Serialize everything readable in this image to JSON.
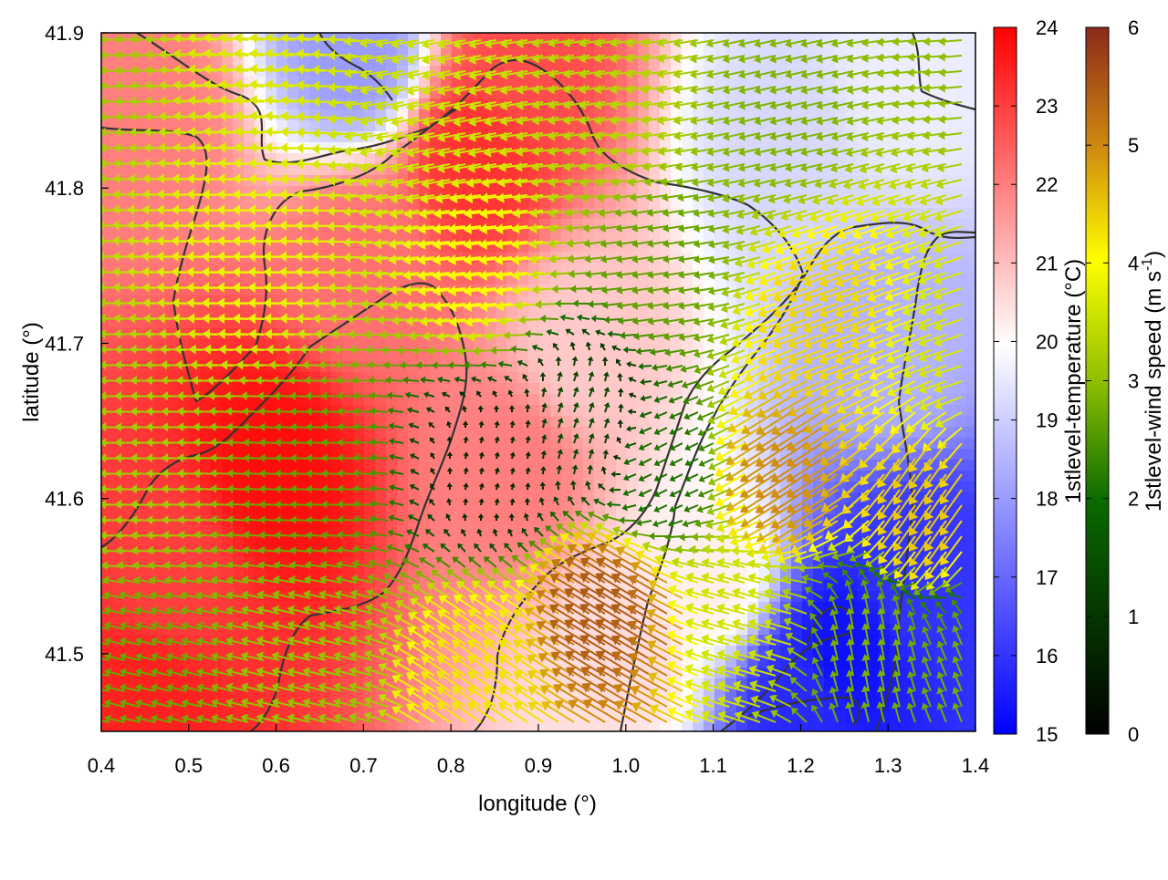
{
  "chart_data": {
    "type": "heatmap",
    "title": "",
    "xlabel": "longitude (°)",
    "ylabel": "latitude (°)",
    "xlim": [
      0.4,
      1.4
    ],
    "ylim": [
      41.45,
      41.9
    ],
    "x_ticks": [
      "0.4",
      "0.5",
      "0.6",
      "0.7",
      "0.8",
      "0.9",
      "1.0",
      "1.1",
      "1.2",
      "1.3",
      "1.4"
    ],
    "y_ticks": [
      "41.5",
      "41.6",
      "41.7",
      "41.8",
      "41.9"
    ],
    "grid": false,
    "overlay": "wind vector arrows coloured by wind speed; dark grey terrain contour lines",
    "temperature_colorbar": {
      "label": "1stlevel-temperature (°C)",
      "range": [
        15,
        24
      ],
      "ticks": [
        "15",
        "16",
        "17",
        "18",
        "19",
        "20",
        "21",
        "22",
        "23",
        "24"
      ],
      "colors": [
        "#0000ff",
        "#ffffff",
        "#ff0000"
      ]
    },
    "wind_colorbar": {
      "label_main": "1stlevel-wind speed (m s",
      "label_sup": "-1",
      "label_end": ")",
      "range": [
        0,
        6
      ],
      "ticks": [
        "0",
        "1",
        "2",
        "3",
        "4",
        "5",
        "6"
      ],
      "colors": [
        "#000000",
        "#0a6a00",
        "#8fbf00",
        "#ffff00",
        "#d08a10",
        "#8b2a1a"
      ]
    },
    "temperature_blobs": [
      {
        "lon": 0.45,
        "lat": 41.85,
        "temp": 22.0
      },
      {
        "lon": 0.6,
        "lat": 41.62,
        "temp": 23.8
      },
      {
        "lon": 0.48,
        "lat": 41.55,
        "temp": 23.0
      },
      {
        "lon": 0.45,
        "lat": 41.47,
        "temp": 23.5
      },
      {
        "lon": 0.83,
        "lat": 41.82,
        "temp": 23.2
      },
      {
        "lon": 0.88,
        "lat": 41.88,
        "temp": 22.8
      },
      {
        "lon": 0.7,
        "lat": 41.75,
        "temp": 22.2
      },
      {
        "lon": 0.87,
        "lat": 41.62,
        "temp": 22.0
      },
      {
        "lon": 0.95,
        "lat": 41.7,
        "temp": 20.8
      },
      {
        "lon": 0.69,
        "lat": 41.89,
        "temp": 18.0
      },
      {
        "lon": 1.18,
        "lat": 41.83,
        "temp": 19.2
      },
      {
        "lon": 1.32,
        "lat": 41.87,
        "temp": 19.6
      },
      {
        "lon": 1.3,
        "lat": 41.7,
        "temp": 18.5
      },
      {
        "lon": 1.33,
        "lat": 41.55,
        "temp": 16.0
      },
      {
        "lon": 1.25,
        "lat": 41.5,
        "temp": 15.3
      },
      {
        "lon": 1.2,
        "lat": 41.47,
        "temp": 15.8
      },
      {
        "lon": 1.1,
        "lat": 41.55,
        "temp": 20.2
      },
      {
        "lon": 1.0,
        "lat": 41.5,
        "temp": 20.5
      }
    ],
    "wind_regimes": [
      {
        "lon": 0.4,
        "lat": 41.9,
        "u": -2.6,
        "v": 0.1
      },
      {
        "lon": 0.6,
        "lat": 41.9,
        "u": -3.2,
        "v": 0.3
      },
      {
        "lon": 0.8,
        "lat": 41.85,
        "u": -3.0,
        "v": -0.6
      },
      {
        "lon": 1.0,
        "lat": 41.85,
        "u": -2.8,
        "v": -0.4
      },
      {
        "lon": 1.2,
        "lat": 41.85,
        "u": -2.2,
        "v": -0.5
      },
      {
        "lon": 1.4,
        "lat": 41.9,
        "u": -2.4,
        "v": -0.2
      },
      {
        "lon": 0.6,
        "lat": 41.75,
        "u": -3.4,
        "v": 0.1
      },
      {
        "lon": 0.85,
        "lat": 41.75,
        "u": -3.6,
        "v": -0.4
      },
      {
        "lon": 1.05,
        "lat": 41.75,
        "u": -2.0,
        "v": -0.3
      },
      {
        "lon": 1.25,
        "lat": 41.72,
        "u": -3.8,
        "v": -1.3
      },
      {
        "lon": 1.4,
        "lat": 41.7,
        "u": -3.0,
        "v": -1.0
      },
      {
        "lon": 0.45,
        "lat": 41.62,
        "u": -2.6,
        "v": 0.1
      },
      {
        "lon": 0.65,
        "lat": 41.62,
        "u": -2.0,
        "v": 0.1
      },
      {
        "lon": 0.85,
        "lat": 41.62,
        "u": 0.1,
        "v": 0.4
      },
      {
        "lon": 0.95,
        "lat": 41.65,
        "u": 0.3,
        "v": 0.8
      },
      {
        "lon": 1.05,
        "lat": 41.62,
        "u": -1.2,
        "v": -0.6
      },
      {
        "lon": 1.2,
        "lat": 41.62,
        "u": -4.0,
        "v": -2.6
      },
      {
        "lon": 1.35,
        "lat": 41.6,
        "u": -2.4,
        "v": -3.4
      },
      {
        "lon": 0.45,
        "lat": 41.48,
        "u": -2.0,
        "v": 0.5
      },
      {
        "lon": 0.65,
        "lat": 41.48,
        "u": -2.4,
        "v": 0.6
      },
      {
        "lon": 0.85,
        "lat": 41.48,
        "u": -3.2,
        "v": 2.2
      },
      {
        "lon": 1.0,
        "lat": 41.52,
        "u": -4.6,
        "v": 2.8
      },
      {
        "lon": 1.15,
        "lat": 41.52,
        "u": -3.0,
        "v": 0.8
      },
      {
        "lon": 1.28,
        "lat": 41.5,
        "u": -0.4,
        "v": 2.2
      },
      {
        "lon": 1.4,
        "lat": 41.48,
        "u": -0.8,
        "v": 2.0
      }
    ]
  }
}
